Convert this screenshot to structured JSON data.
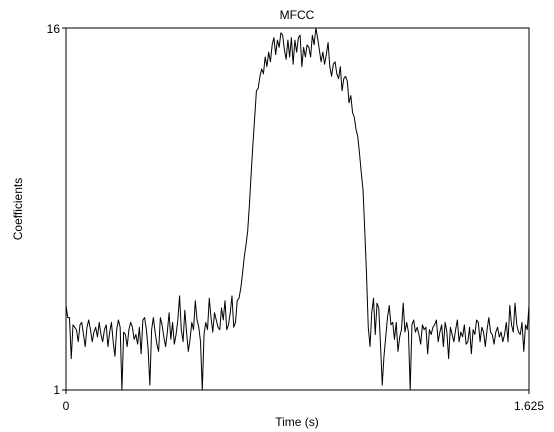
{
  "chart_data": {
    "type": "line",
    "title": "MFCC",
    "xlabel": "Time (s)",
    "ylabel": "Coefficients",
    "xlim": [
      0,
      1.625
    ],
    "ylim": [
      1,
      16
    ],
    "x_tick_labels": [
      "0",
      "1.625"
    ],
    "y_tick_labels": [
      "1",
      "16"
    ],
    "grid": false,
    "line_color": "#000000",
    "series": [
      {
        "values": [
          4.5,
          4.0,
          4.0,
          2.3,
          3.7,
          3.6,
          3.5,
          3.0,
          3.7,
          3.8,
          3.3,
          2.8,
          3.6,
          3.9,
          3.5,
          3.0,
          3.4,
          3.6,
          3.2,
          3.8,
          3.3,
          3.0,
          3.5,
          3.7,
          2.8,
          3.4,
          3.8,
          3.0,
          2.4,
          3.5,
          3.9,
          3.6,
          1.0,
          3.4,
          3.3,
          2.8,
          3.5,
          3.8,
          3.6,
          3.1,
          3.3,
          2.9,
          3.6,
          2.5,
          3.9,
          4.0,
          3.5,
          2.7,
          1.2,
          3.5,
          4.0,
          3.4,
          2.9,
          2.6,
          4.0,
          3.7,
          3.2,
          2.8,
          3.4,
          4.2,
          3.1,
          3.8,
          2.9,
          3.3,
          3.9,
          4.9,
          3.5,
          3.0,
          4.3,
          3.4,
          2.6,
          3.1,
          3.8,
          3.5,
          4.7,
          3.9,
          3.6,
          3.0,
          1.0,
          3.3,
          3.8,
          3.5,
          4.8,
          4.0,
          3.4,
          4.2,
          3.9,
          3.6,
          3.5,
          4.4,
          3.9,
          4.7,
          3.5,
          3.7,
          4.2,
          4.9,
          3.6,
          3.8,
          4.7,
          4.8,
          5.2,
          5.8,
          6.5,
          7.0,
          7.6,
          8.7,
          10.0,
          11.2,
          12.3,
          13.4,
          13.5,
          14.0,
          14.3,
          14.1,
          14.8,
          14.4,
          15.0,
          14.6,
          15.3,
          15.6,
          14.9,
          15.5,
          15.2,
          15.8,
          15.7,
          15.1,
          14.7,
          15.5,
          14.8,
          15.6,
          14.5,
          15.5,
          15.0,
          15.6,
          15.7,
          14.4,
          15.2,
          14.8,
          15.3,
          15.2,
          14.8,
          15.7,
          15.3,
          16.0,
          15.6,
          15.1,
          14.6,
          15.0,
          14.5,
          14.9,
          15.4,
          14.4,
          14.0,
          14.5,
          14.6,
          14.1,
          13.9,
          14.4,
          13.4,
          13.9,
          14.0,
          13.8,
          12.9,
          13.2,
          12.5,
          12.3,
          11.8,
          11.5,
          10.8,
          10.0,
          9.3,
          7.6,
          5.8,
          3.6,
          2.8,
          4.2,
          4.8,
          3.3,
          4.6,
          4.4,
          2.9,
          1.2,
          2.4,
          3.2,
          4.0,
          4.5,
          3.7,
          3.8,
          3.1,
          3.8,
          2.6,
          3.2,
          3.5,
          4.6,
          3.4,
          3.8,
          3.4,
          1.0,
          3.7,
          3.9,
          3.4,
          3.6,
          3.3,
          2.9,
          3.7,
          3.5,
          3.6,
          2.5,
          3.5,
          3.3,
          3.6,
          3.7,
          3.9,
          3.0,
          3.4,
          3.7,
          2.8,
          3.8,
          3.4,
          2.3,
          3.6,
          3.3,
          3.0,
          3.5,
          3.9,
          3.0,
          3.4,
          3.2,
          3.7,
          2.9,
          3.0,
          3.6,
          2.5,
          3.5,
          3.3,
          3.9,
          3.8,
          3.0,
          3.6,
          3.4,
          2.8,
          3.5,
          4.0,
          3.4,
          3.3,
          2.9,
          3.4,
          3.6,
          3.2,
          3.4,
          3.0,
          3.3,
          3.8,
          3.0,
          4.5,
          3.7,
          3.4,
          4.6,
          3.7,
          3.4,
          3.3,
          3.8,
          2.6,
          3.7,
          3.5,
          4.5
        ]
      }
    ]
  }
}
